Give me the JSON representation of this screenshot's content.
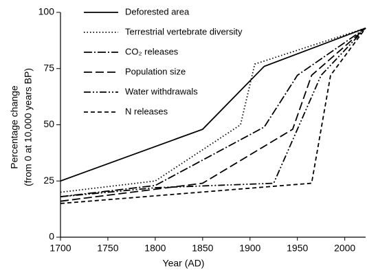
{
  "chart_data": {
    "type": "line",
    "x_label": "Year (AD)",
    "y_label": [
      "Percentage change",
      "(from 0 at 10,000 years BP)"
    ],
    "xlim": [
      1700,
      2022
    ],
    "xticks": [
      1700,
      1750,
      1800,
      1850,
      1900,
      1950,
      2000
    ],
    "ylim": [
      0,
      100
    ],
    "yticks": [
      0,
      25,
      50,
      75,
      100
    ],
    "legend": "upper-left",
    "series": [
      {
        "name": "Deforested area",
        "color": "#000000",
        "dash": "none",
        "x": [
          1700,
          1850,
          1915,
          2022
        ],
        "values": [
          25,
          48,
          76,
          93
        ]
      },
      {
        "name": "Terrestrial vertebrate diversity",
        "color": "#000000",
        "dash": "1.5 3",
        "x": [
          1700,
          1800,
          1890,
          1905,
          2022
        ],
        "values": [
          20,
          25,
          50,
          77,
          93
        ]
      },
      {
        "name": "CO₂ releases",
        "color": "#000000",
        "dash": "12 3 2 3",
        "x": [
          1700,
          1800,
          1915,
          1950,
          2022
        ],
        "values": [
          18,
          23,
          49,
          72,
          93
        ]
      },
      {
        "name": "Population size",
        "color": "#000000",
        "dash": "12 5",
        "x": [
          1700,
          1850,
          1945,
          1965,
          2022
        ],
        "values": [
          16,
          24,
          48,
          72,
          93
        ]
      },
      {
        "name": "Water withdrawals",
        "color": "#000000",
        "dash": "10 3 2 3 2 3",
        "x": [
          1700,
          1800,
          1925,
          1975,
          2022
        ],
        "values": [
          18,
          22,
          24,
          72,
          93
        ]
      },
      {
        "name": "N releases",
        "color": "#000000",
        "dash": "6 4",
        "x": [
          1700,
          1965,
          1985,
          2022
        ],
        "values": [
          15,
          24,
          72,
          93
        ]
      }
    ]
  }
}
